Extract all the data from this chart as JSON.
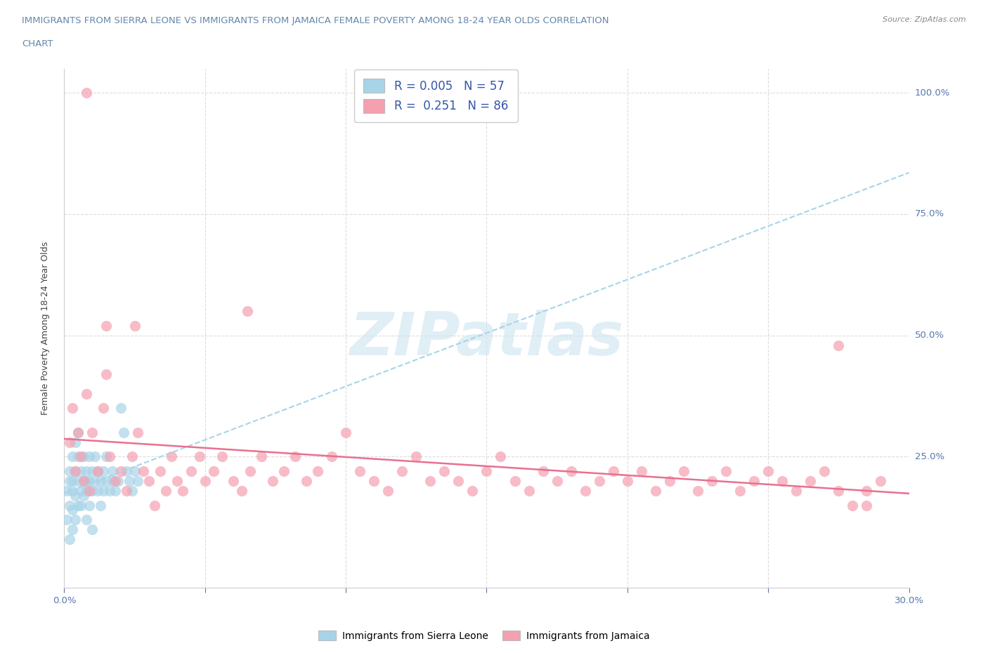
{
  "title_line1": "IMMIGRANTS FROM SIERRA LEONE VS IMMIGRANTS FROM JAMAICA FEMALE POVERTY AMONG 18-24 YEAR OLDS CORRELATION",
  "title_line2": "CHART",
  "source": "Source: ZipAtlas.com",
  "ylabel": "Female Poverty Among 18-24 Year Olds",
  "xlim": [
    0.0,
    0.3
  ],
  "ylim": [
    -0.02,
    1.05
  ],
  "x_ticks": [
    0.0,
    0.05,
    0.1,
    0.15,
    0.2,
    0.25,
    0.3
  ],
  "x_tick_labels": [
    "0.0%",
    "",
    "",
    "",
    "",
    "",
    "30.0%"
  ],
  "y_ticks": [
    0.0,
    0.25,
    0.5,
    0.75,
    1.0
  ],
  "y_tick_labels": [
    "",
    "25.0%",
    "50.0%",
    "75.0%",
    "100.0%"
  ],
  "sierra_leone_color": "#a8d4e8",
  "jamaica_color": "#f4a0b0",
  "sierra_leone_line_color": "#a8d4e8",
  "jamaica_line_color": "#e87090",
  "sierra_leone_R": 0.005,
  "sierra_leone_N": 57,
  "jamaica_R": 0.251,
  "jamaica_N": 86,
  "legend_label_1": "Immigrants from Sierra Leone",
  "legend_label_2": "Immigrants from Jamaica",
  "sierra_leone_x": [
    0.001,
    0.001,
    0.002,
    0.002,
    0.002,
    0.002,
    0.003,
    0.003,
    0.003,
    0.003,
    0.003,
    0.004,
    0.004,
    0.004,
    0.004,
    0.005,
    0.005,
    0.005,
    0.005,
    0.006,
    0.006,
    0.006,
    0.007,
    0.007,
    0.007,
    0.008,
    0.008,
    0.008,
    0.008,
    0.009,
    0.009,
    0.009,
    0.01,
    0.01,
    0.01,
    0.011,
    0.011,
    0.012,
    0.012,
    0.013,
    0.013,
    0.014,
    0.014,
    0.015,
    0.015,
    0.016,
    0.017,
    0.017,
    0.018,
    0.019,
    0.02,
    0.021,
    0.022,
    0.023,
    0.024,
    0.025,
    0.026
  ],
  "sierra_leone_y": [
    0.18,
    0.12,
    0.2,
    0.15,
    0.22,
    0.08,
    0.25,
    0.18,
    0.2,
    0.14,
    0.1,
    0.22,
    0.17,
    0.28,
    0.12,
    0.2,
    0.25,
    0.15,
    0.3,
    0.22,
    0.18,
    0.15,
    0.2,
    0.25,
    0.17,
    0.22,
    0.18,
    0.2,
    0.12,
    0.25,
    0.2,
    0.15,
    0.22,
    0.18,
    0.1,
    0.2,
    0.25,
    0.18,
    0.22,
    0.2,
    0.15,
    0.22,
    0.18,
    0.2,
    0.25,
    0.18,
    0.22,
    0.2,
    0.18,
    0.2,
    0.35,
    0.3,
    0.22,
    0.2,
    0.18,
    0.22,
    0.2
  ],
  "jamaica_x": [
    0.002,
    0.003,
    0.004,
    0.005,
    0.006,
    0.007,
    0.008,
    0.009,
    0.01,
    0.012,
    0.014,
    0.015,
    0.016,
    0.018,
    0.02,
    0.022,
    0.024,
    0.026,
    0.028,
    0.03,
    0.032,
    0.034,
    0.036,
    0.038,
    0.04,
    0.042,
    0.045,
    0.048,
    0.05,
    0.053,
    0.056,
    0.06,
    0.063,
    0.066,
    0.07,
    0.074,
    0.078,
    0.082,
    0.086,
    0.09,
    0.095,
    0.1,
    0.105,
    0.11,
    0.115,
    0.12,
    0.125,
    0.13,
    0.135,
    0.14,
    0.145,
    0.15,
    0.155,
    0.16,
    0.165,
    0.17,
    0.175,
    0.18,
    0.185,
    0.19,
    0.195,
    0.2,
    0.205,
    0.21,
    0.215,
    0.22,
    0.225,
    0.23,
    0.235,
    0.24,
    0.245,
    0.25,
    0.255,
    0.26,
    0.265,
    0.27,
    0.275,
    0.28,
    0.285,
    0.29,
    0.008,
    0.015,
    0.025,
    0.275,
    0.285,
    0.065
  ],
  "jamaica_y": [
    0.28,
    0.35,
    0.22,
    0.3,
    0.25,
    0.2,
    0.38,
    0.18,
    0.3,
    0.22,
    0.35,
    0.42,
    0.25,
    0.2,
    0.22,
    0.18,
    0.25,
    0.3,
    0.22,
    0.2,
    0.15,
    0.22,
    0.18,
    0.25,
    0.2,
    0.18,
    0.22,
    0.25,
    0.2,
    0.22,
    0.25,
    0.2,
    0.18,
    0.22,
    0.25,
    0.2,
    0.22,
    0.25,
    0.2,
    0.22,
    0.25,
    0.3,
    0.22,
    0.2,
    0.18,
    0.22,
    0.25,
    0.2,
    0.22,
    0.2,
    0.18,
    0.22,
    0.25,
    0.2,
    0.18,
    0.22,
    0.2,
    0.22,
    0.18,
    0.2,
    0.22,
    0.2,
    0.22,
    0.18,
    0.2,
    0.22,
    0.18,
    0.2,
    0.22,
    0.18,
    0.2,
    0.22,
    0.2,
    0.18,
    0.2,
    0.22,
    0.18,
    0.15,
    0.18,
    0.2,
    1.0,
    0.52,
    0.52,
    0.48,
    0.15,
    0.55
  ]
}
